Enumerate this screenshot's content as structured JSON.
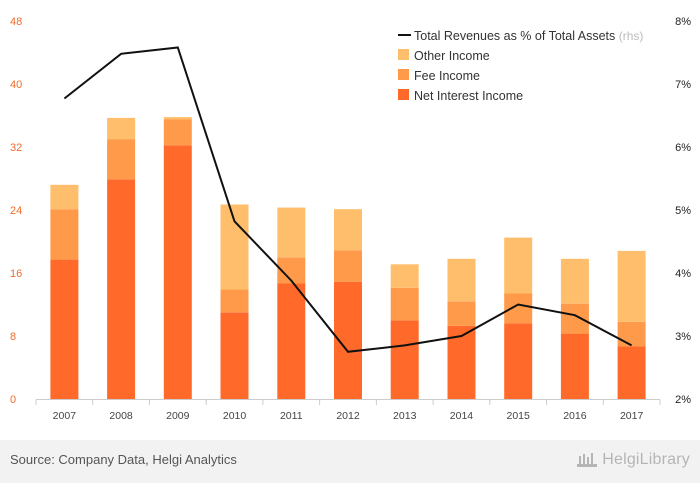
{
  "chart_data": {
    "type": "bar",
    "stacked": true,
    "categories": [
      "2007",
      "2008",
      "2009",
      "2010",
      "2011",
      "2012",
      "2013",
      "2014",
      "2015",
      "2016",
      "2017"
    ],
    "series": [
      {
        "name": "Net Interest Income",
        "color": "#ff6a2b",
        "values": [
          17.7,
          27.9,
          32.2,
          11.0,
          14.7,
          14.9,
          10.0,
          9.3,
          9.6,
          8.3,
          6.7
        ]
      },
      {
        "name": "Fee Income",
        "color": "#ff9a4a",
        "values": [
          6.4,
          5.1,
          3.3,
          2.9,
          3.3,
          4.0,
          4.1,
          3.1,
          3.8,
          3.8,
          3.1
        ]
      },
      {
        "name": "Other Income",
        "color": "#ffbe6c",
        "values": [
          3.1,
          2.7,
          0.3,
          10.8,
          6.3,
          5.2,
          3.0,
          5.4,
          7.1,
          5.7,
          9.0
        ]
      }
    ],
    "line": {
      "name": "Total Revenues as % of Total Assets",
      "suffix": "(rhs)",
      "color": "#111111",
      "values": [
        6.77,
        7.48,
        7.58,
        4.82,
        3.88,
        2.75,
        2.85,
        3.0,
        3.5,
        3.33,
        2.85
      ]
    },
    "ylim_left": [
      0,
      48
    ],
    "yticks_left": [
      "0",
      "8",
      "16",
      "24",
      "32",
      "40",
      "48"
    ],
    "ylim_right": [
      2,
      8
    ],
    "yticks_right": [
      "2%",
      "3%",
      "4%",
      "5%",
      "6%",
      "7%",
      "8%"
    ],
    "legend_position": "top-right",
    "grid": false
  },
  "footer": {
    "source": "Source: Company Data, Helgi Analytics",
    "brand": "HelgiLibrary"
  }
}
